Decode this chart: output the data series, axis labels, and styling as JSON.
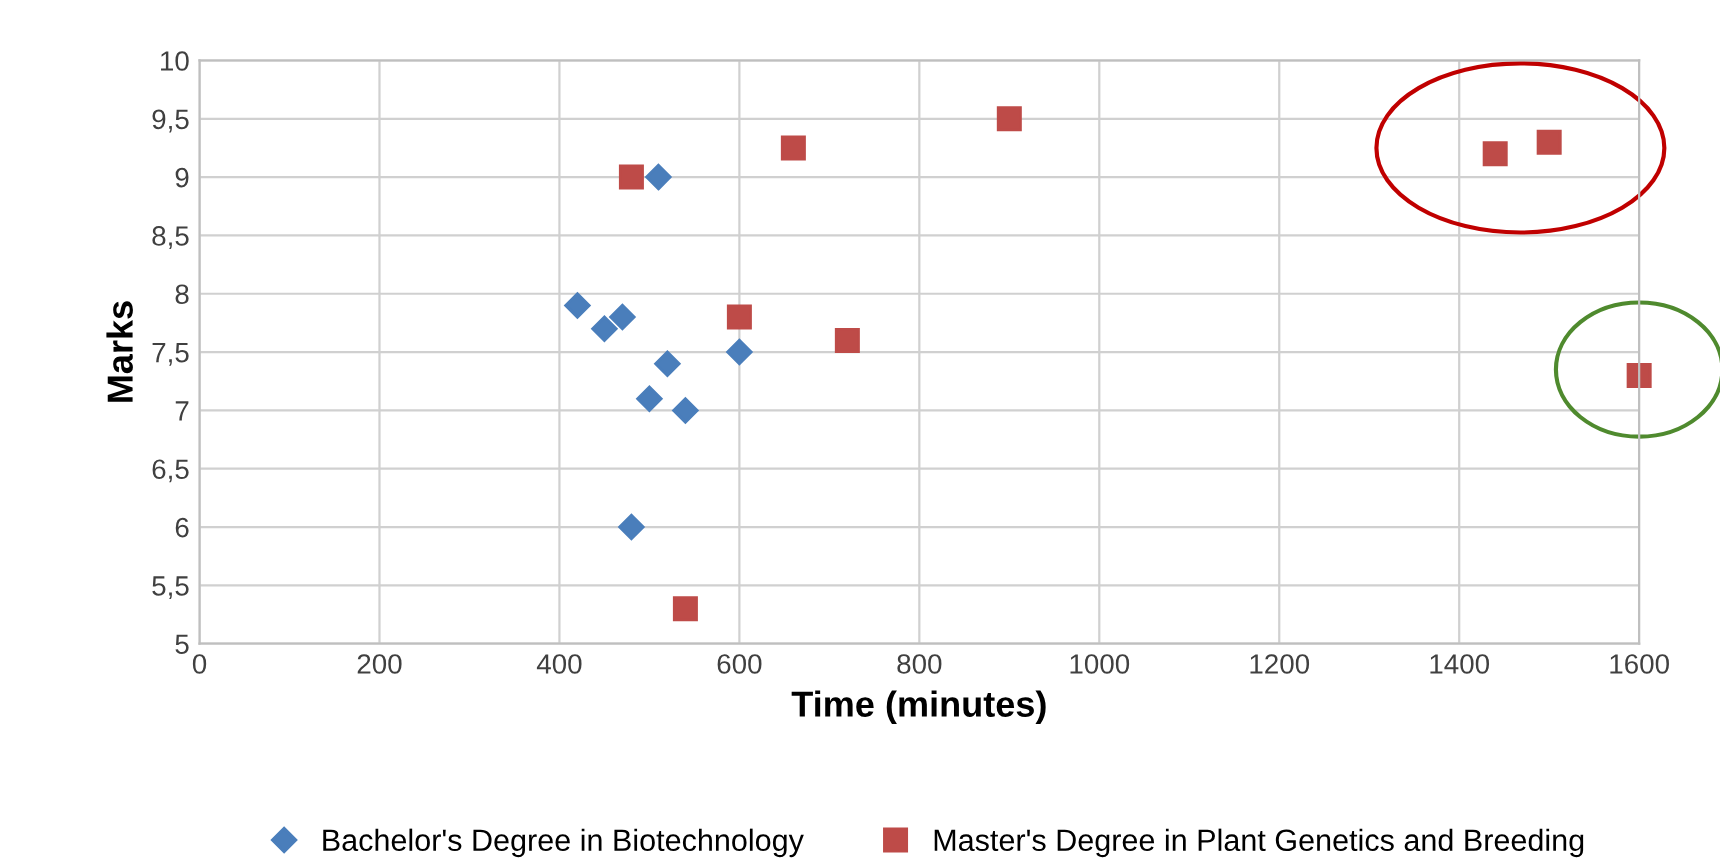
{
  "chart_data": {
    "type": "scatter",
    "xlabel": "Time (minutes)",
    "ylabel": "Marks",
    "xlim": [
      0,
      1600
    ],
    "xticks": [
      0,
      200,
      400,
      600,
      800,
      1000,
      1200,
      1400,
      1600
    ],
    "ylim": [
      5,
      10
    ],
    "yticks": [
      5,
      {
        "value": 5.5,
        "label": "5,5"
      },
      6,
      {
        "value": 6.5,
        "label": "6,5"
      },
      7,
      {
        "value": 7.5,
        "label": "7,5"
      },
      8,
      {
        "value": 8.5,
        "label": "8,5"
      },
      9,
      {
        "value": 9.5,
        "label": "9,5"
      },
      10
    ],
    "grid": true,
    "legend": "bottom",
    "series": [
      {
        "name": "Bachelor's Degree in Biotechnology",
        "color": "#4a7ebb",
        "marker": "diamond",
        "x": [
          420,
          450,
          470,
          510,
          520,
          500,
          540,
          480,
          600
        ],
        "values": [
          7.9,
          7.7,
          7.8,
          9.0,
          7.4,
          7.1,
          7.0,
          6.0,
          7.5
        ]
      },
      {
        "name": "Master's Degree in Plant Genetics and Breeding",
        "color": "#be4b48",
        "marker": "square",
        "x": [
          480,
          660,
          900,
          600,
          720,
          540,
          1440,
          1500,
          1600
        ],
        "values": [
          9.0,
          9.25,
          9.5,
          7.8,
          7.6,
          5.3,
          9.2,
          9.3,
          7.3
        ]
      }
    ]
  }
}
